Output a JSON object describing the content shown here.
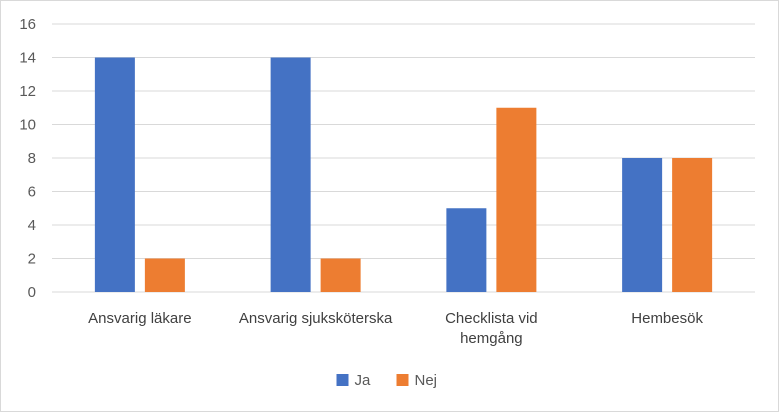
{
  "chart_data": {
    "type": "bar",
    "categories": [
      "Ansvarig läkare",
      "Ansvarig sjuksköterska",
      "Checklista vid hemgång",
      "Hembesök"
    ],
    "category_lines": [
      [
        "Ansvarig läkare"
      ],
      [
        "Ansvarig sjuksköterska"
      ],
      [
        "Checklista vid",
        "hemgång"
      ],
      [
        "Hembesök"
      ]
    ],
    "series": [
      {
        "name": "Ja",
        "values": [
          14,
          14,
          5,
          8
        ],
        "color": "#4472c4"
      },
      {
        "name": "Nej",
        "values": [
          2,
          2,
          11,
          8
        ],
        "color": "#ed7d31"
      }
    ],
    "ylim": [
      0,
      16
    ],
    "yticks": [
      0,
      2,
      4,
      6,
      8,
      10,
      12,
      14,
      16
    ],
    "grid": true,
    "legend_position": "bottom",
    "title": "",
    "xlabel": "",
    "ylabel": ""
  }
}
